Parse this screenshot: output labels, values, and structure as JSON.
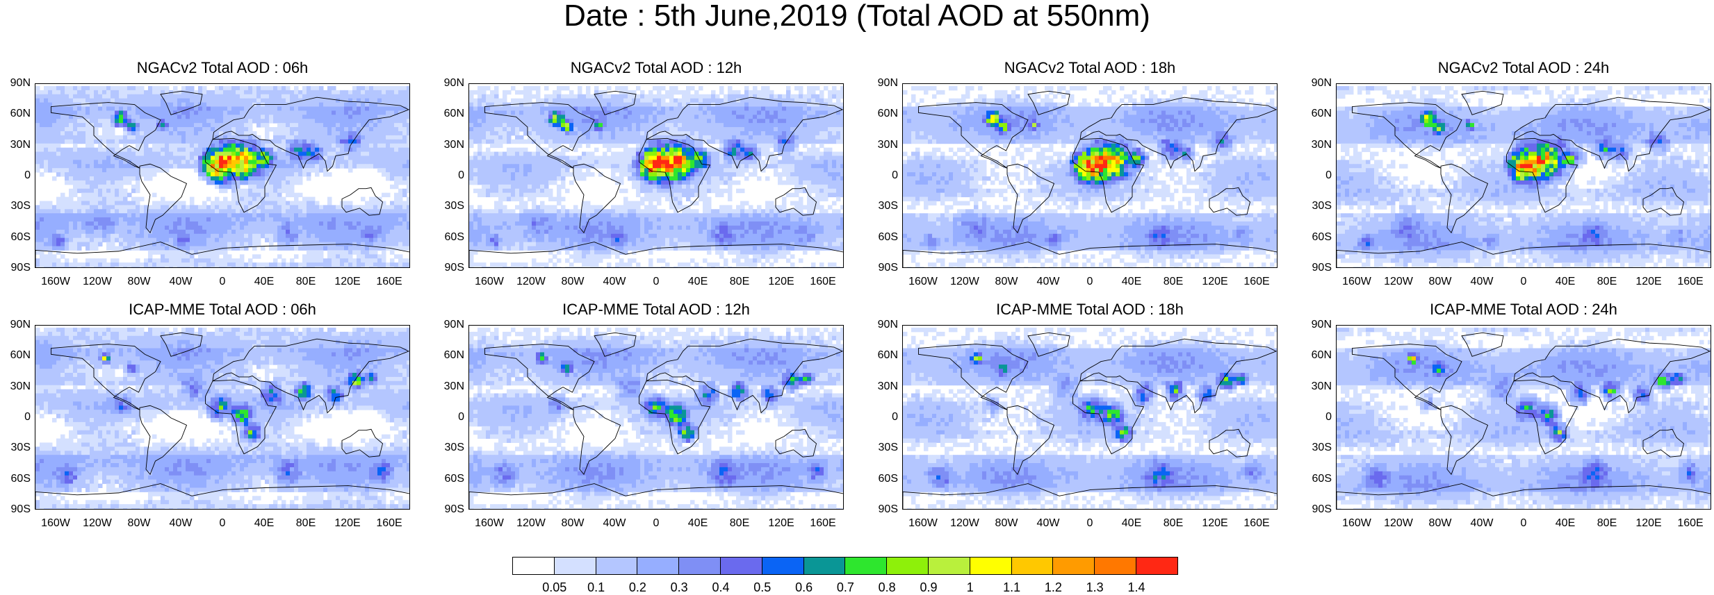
{
  "title": "Date : 5th June,2019 (Total AOD at 550nm)",
  "axes": {
    "y_ticks": [
      "90N",
      "60N",
      "30N",
      "0",
      "30S",
      "60S",
      "90S"
    ],
    "x_ticks": [
      "160W",
      "120W",
      "80W",
      "40W",
      "0",
      "40E",
      "80E",
      "120E",
      "160E"
    ]
  },
  "panels": [
    {
      "title": "NGACv2 Total AOD : 06h",
      "model": "ngac"
    },
    {
      "title": "NGACv2 Total AOD : 12h",
      "model": "ngac"
    },
    {
      "title": "NGACv2 Total AOD : 18h",
      "model": "ngac"
    },
    {
      "title": "NGACv2 Total AOD : 24h",
      "model": "ngac"
    },
    {
      "title": "ICAP-MME Total AOD : 06h",
      "model": "icap"
    },
    {
      "title": "ICAP-MME Total AOD : 12h",
      "model": "icap"
    },
    {
      "title": "ICAP-MME Total AOD : 18h",
      "model": "icap"
    },
    {
      "title": "ICAP-MME Total AOD : 24h",
      "model": "icap"
    }
  ],
  "colorbar": {
    "labels": [
      "0.05",
      "0.1",
      "0.2",
      "0.3",
      "0.4",
      "0.5",
      "0.6",
      "0.7",
      "0.8",
      "0.9",
      "1",
      "1.1",
      "1.2",
      "1.3",
      "1.4"
    ],
    "colors": [
      "#ffffff",
      "#d4e0ff",
      "#b4c6ff",
      "#96aeff",
      "#7f8ff5",
      "#6a6aee",
      "#0a64f5",
      "#0a9696",
      "#2ee62e",
      "#8ef00a",
      "#b9f03c",
      "#ffff00",
      "#ffc800",
      "#ff9b00",
      "#ff7800",
      "#ff2814"
    ]
  }
}
